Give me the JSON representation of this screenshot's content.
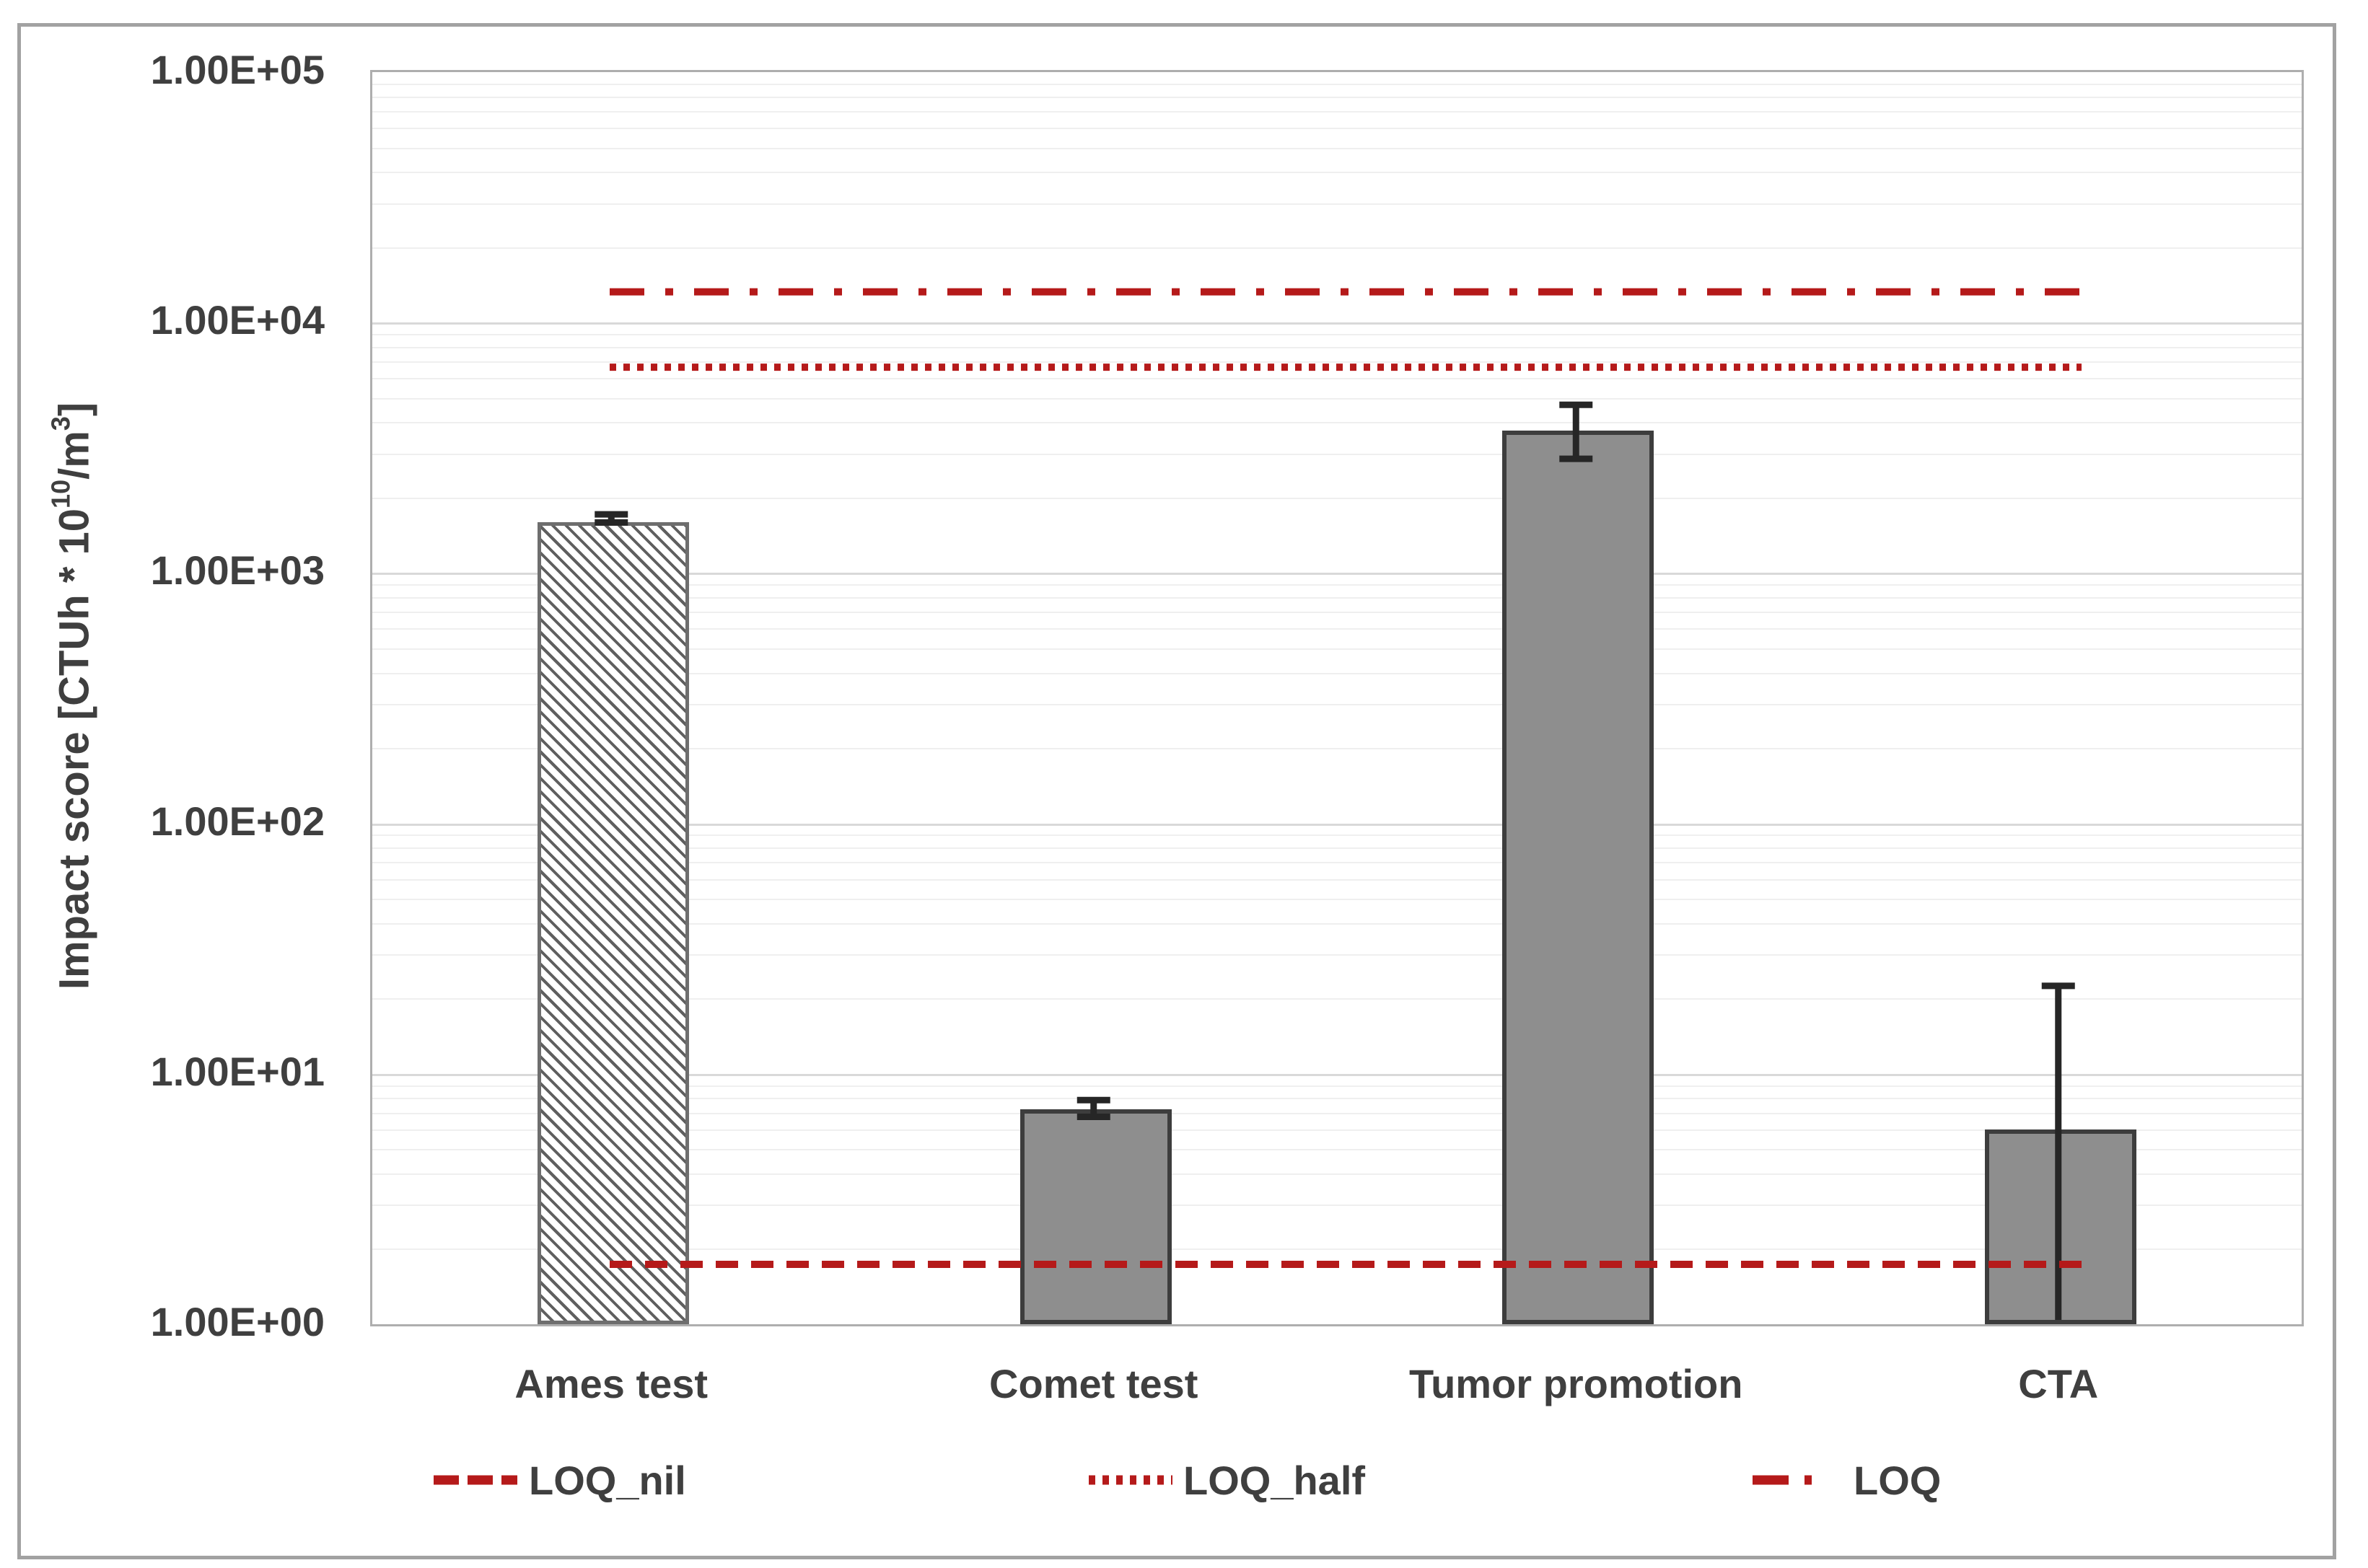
{
  "axis_title": {
    "prefix": "Impact score [CTUh * 10",
    "sup1": "10",
    "mid": "/m",
    "sup2": "3",
    "suffix": "]"
  },
  "legend": [
    {
      "label": "LOQ_nil",
      "style": "dashed"
    },
    {
      "label": "LOQ_half",
      "style": "dotted"
    },
    {
      "label": "LOQ",
      "style": "dash-dot"
    }
  ],
  "chart_data": {
    "type": "bar",
    "log_scale": true,
    "ylim": [
      1,
      100000
    ],
    "ylabel": "Impact score [CTUh * 10^10/m^3]",
    "xlabel": "",
    "grid": "horizontal log major+minor",
    "legend_position": "bottom",
    "y_ticks": [
      {
        "value": 1,
        "label": "1.00E+00"
      },
      {
        "value": 10,
        "label": "1.00E+01"
      },
      {
        "value": 100,
        "label": "1.00E+02"
      },
      {
        "value": 1000,
        "label": "1.00E+03"
      },
      {
        "value": 10000,
        "label": "1.00E+04"
      },
      {
        "value": 100000,
        "label": "1.00E+05"
      }
    ],
    "categories": [
      "Ames test",
      "Comet test",
      "Tumor promotion",
      "CTA"
    ],
    "bars": [
      {
        "category": "Ames test",
        "value": 1600,
        "style": "hatched",
        "error": {
          "high": 1680,
          "low": 1560,
          "low_cap": true
        }
      },
      {
        "category": "Comet test",
        "value": 7.2,
        "style": "solid",
        "error": {
          "high": 7.7,
          "low": 6.6,
          "low_cap": true
        }
      },
      {
        "category": "Tumor promotion",
        "value": 3700,
        "style": "solid",
        "error": {
          "high": 4600,
          "low": 2800,
          "low_cap": true
        }
      },
      {
        "category": "CTA",
        "value": 6.0,
        "style": "solid",
        "error": {
          "high": 22,
          "low": 1.02,
          "low_cap": false
        }
      }
    ],
    "reference_lines": [
      {
        "name": "LOQ_nil",
        "value": 1.7,
        "style": "dashed"
      },
      {
        "name": "LOQ_half",
        "value": 6500,
        "style": "dotted"
      },
      {
        "name": "LOQ",
        "value": 13000,
        "style": "dash-dot"
      }
    ],
    "colors": {
      "bar_fill": "#8E8E8E",
      "bar_border": "#3D3D3D",
      "hatch_stripe": "#5F5F5F",
      "hatch_background": "#FFFFFF",
      "hatch_border": "#6E6E6E",
      "error_bar": "#262626",
      "reference": "#B51A1A",
      "text": "#3F3F3F",
      "grid_major": "#D9D9D9",
      "grid_minor": "#EFEFEF",
      "plot_border": "#AEAEAE",
      "figure_border": "#A2A2A2"
    }
  }
}
